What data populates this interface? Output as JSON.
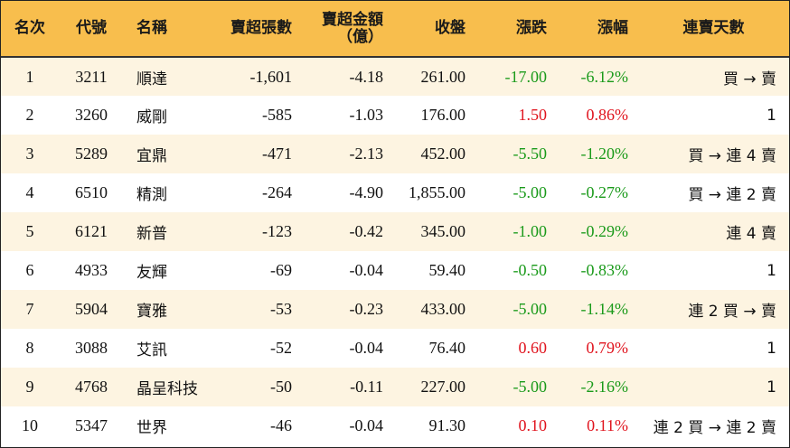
{
  "headers": {
    "rank": "名次",
    "code": "代號",
    "name": "名稱",
    "sell_lots": "賣超張數",
    "sell_amount_line1": "賣超金額",
    "sell_amount_line2": "（億）",
    "close": "收盤",
    "change": "漲跌",
    "change_pct": "漲幅",
    "streak": "連賣天數"
  },
  "colors": {
    "header_bg": "#f8be4d",
    "stripe_bg": "#fdf4e1",
    "up": "#e0141e",
    "down": "#1a9a1a"
  },
  "rows": [
    {
      "rank": "1",
      "code": "3211",
      "name": "順達",
      "sell_lots": "-1,601",
      "sell_amount": "-4.18",
      "close": "261.00",
      "change": "-17.00",
      "change_pct": "-6.12%",
      "direction": "down",
      "streak": "買 → 賣"
    },
    {
      "rank": "2",
      "code": "3260",
      "name": "威剛",
      "sell_lots": "-585",
      "sell_amount": "-1.03",
      "close": "176.00",
      "change": "1.50",
      "change_pct": "0.86%",
      "direction": "up",
      "streak": "1"
    },
    {
      "rank": "3",
      "code": "5289",
      "name": "宜鼎",
      "sell_lots": "-471",
      "sell_amount": "-2.13",
      "close": "452.00",
      "change": "-5.50",
      "change_pct": "-1.20%",
      "direction": "down",
      "streak": "買 → 連 4 賣"
    },
    {
      "rank": "4",
      "code": "6510",
      "name": "精測",
      "sell_lots": "-264",
      "sell_amount": "-4.90",
      "close": "1,855.00",
      "change": "-5.00",
      "change_pct": "-0.27%",
      "direction": "down",
      "streak": "買 → 連 2 賣"
    },
    {
      "rank": "5",
      "code": "6121",
      "name": "新普",
      "sell_lots": "-123",
      "sell_amount": "-0.42",
      "close": "345.00",
      "change": "-1.00",
      "change_pct": "-0.29%",
      "direction": "down",
      "streak": "連 4 賣"
    },
    {
      "rank": "6",
      "code": "4933",
      "name": "友輝",
      "sell_lots": "-69",
      "sell_amount": "-0.04",
      "close": "59.40",
      "change": "-0.50",
      "change_pct": "-0.83%",
      "direction": "down",
      "streak": "1"
    },
    {
      "rank": "7",
      "code": "5904",
      "name": "寶雅",
      "sell_lots": "-53",
      "sell_amount": "-0.23",
      "close": "433.00",
      "change": "-5.00",
      "change_pct": "-1.14%",
      "direction": "down",
      "streak": "連 2 買 → 賣"
    },
    {
      "rank": "8",
      "code": "3088",
      "name": "艾訊",
      "sell_lots": "-52",
      "sell_amount": "-0.04",
      "close": "76.40",
      "change": "0.60",
      "change_pct": "0.79%",
      "direction": "up",
      "streak": "1"
    },
    {
      "rank": "9",
      "code": "4768",
      "name": "晶呈科技",
      "sell_lots": "-50",
      "sell_amount": "-0.11",
      "close": "227.00",
      "change": "-5.00",
      "change_pct": "-2.16%",
      "direction": "down",
      "streak": "1"
    },
    {
      "rank": "10",
      "code": "5347",
      "name": "世界",
      "sell_lots": "-46",
      "sell_amount": "-0.04",
      "close": "91.30",
      "change": "0.10",
      "change_pct": "0.11%",
      "direction": "up",
      "streak": "連 2 買 → 連 2 賣"
    }
  ]
}
